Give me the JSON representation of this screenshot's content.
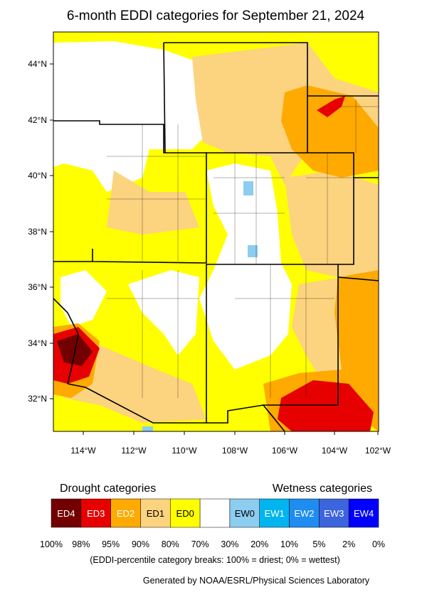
{
  "title": "6-month EDDI categories for September 21, 2024",
  "map": {
    "lat_labels": [
      "44°N",
      "42°N",
      "40°N",
      "38°N",
      "36°N",
      "34°N",
      "32°N"
    ],
    "lon_labels": [
      "114°W",
      "112°W",
      "110°W",
      "108°W",
      "106°W",
      "104°W",
      "102°W"
    ]
  },
  "legend": {
    "drought_title": "Drought categories",
    "wetness_title": "Wetness categories",
    "drought": [
      {
        "label": "ED4",
        "color": "#730000",
        "text": "#ffffff"
      },
      {
        "label": "ED3",
        "color": "#e60000",
        "text": "#ffffff"
      },
      {
        "label": "ED2",
        "color": "#ffaa00",
        "text": "#ffffff"
      },
      {
        "label": "ED1",
        "color": "#fcd37f",
        "text": "#000000"
      },
      {
        "label": "ED0",
        "color": "#ffff00",
        "text": "#000000"
      }
    ],
    "wetness": [
      {
        "label": "EW0",
        "color": "#8ccdf0",
        "text": "#000000"
      },
      {
        "label": "EW1",
        "color": "#00b4f0",
        "text": "#ffffff"
      },
      {
        "label": "EW2",
        "color": "#1e8cf0",
        "text": "#ffffff"
      },
      {
        "label": "EW3",
        "color": "#3c64dc",
        "text": "#ffffff"
      },
      {
        "label": "EW4",
        "color": "#0000ff",
        "text": "#ffffff"
      }
    ],
    "breaks": [
      "100%",
      "98%",
      "95%",
      "90%",
      "80%",
      "70%",
      "30%",
      "20%",
      "10%",
      "5%",
      "2%",
      "0%"
    ],
    "note": "(EDDI-percentile category breaks: 100% = driest; 0% = wettest)"
  },
  "credit": "Generated by NOAA/ESRL/Physical Sciences Laboratory"
}
